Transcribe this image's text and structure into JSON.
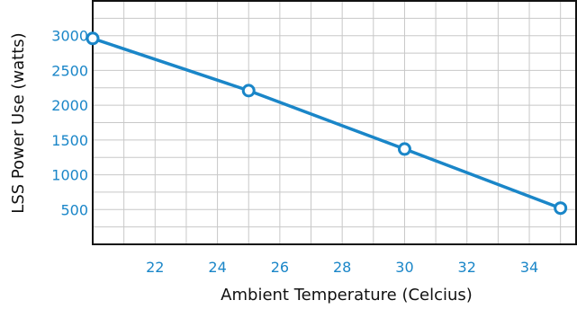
{
  "chart_data": {
    "type": "line",
    "title": "",
    "xlabel": "Ambient Temperature (Celcius)",
    "ylabel": "LSS Power Use (watts)",
    "xlim": [
      20,
      35.5
    ],
    "ylim": [
      0,
      3500
    ],
    "xticks": [
      22,
      24,
      26,
      28,
      30,
      32,
      34
    ],
    "yticks": [
      500,
      1000,
      1500,
      2000,
      2500,
      3000
    ],
    "grid": true,
    "series": [
      {
        "color": "#1a86c8",
        "points": [
          {
            "x": 20,
            "y": 2960
          },
          {
            "x": 25,
            "y": 2210
          },
          {
            "x": 30,
            "y": 1370
          },
          {
            "x": 35,
            "y": 520
          }
        ]
      }
    ]
  }
}
